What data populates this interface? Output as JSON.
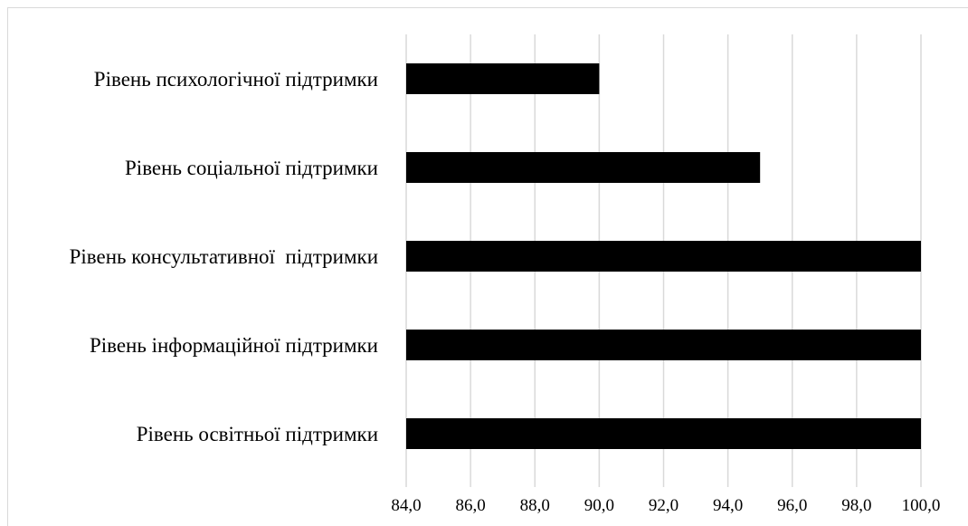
{
  "chart_data": {
    "type": "bar",
    "orientation": "horizontal",
    "categories": [
      "Рівень психологічної підтримки",
      "Рівень соціальної підтримки",
      "Рівень консультативної  підтримки",
      "Рівень інформаційної підтримки",
      "Рівень освітньої підтримки"
    ],
    "values": [
      90,
      95,
      100,
      100,
      100
    ],
    "xlim": [
      84,
      100
    ],
    "xticks": [
      84,
      86,
      88,
      90,
      92,
      94,
      96,
      98,
      100
    ],
    "xtick_labels": [
      "84,0",
      "86,0",
      "88,0",
      "90,0",
      "92,0",
      "94,0",
      "96,0",
      "98,0",
      "100,0"
    ],
    "title": "",
    "xlabel": "",
    "ylabel": "",
    "grid": "vertical",
    "legend": "none",
    "colors": {
      "bar": "#000000",
      "grid": "#d9d9d9",
      "text": "#000000",
      "frame": "#d9d9d9"
    }
  }
}
